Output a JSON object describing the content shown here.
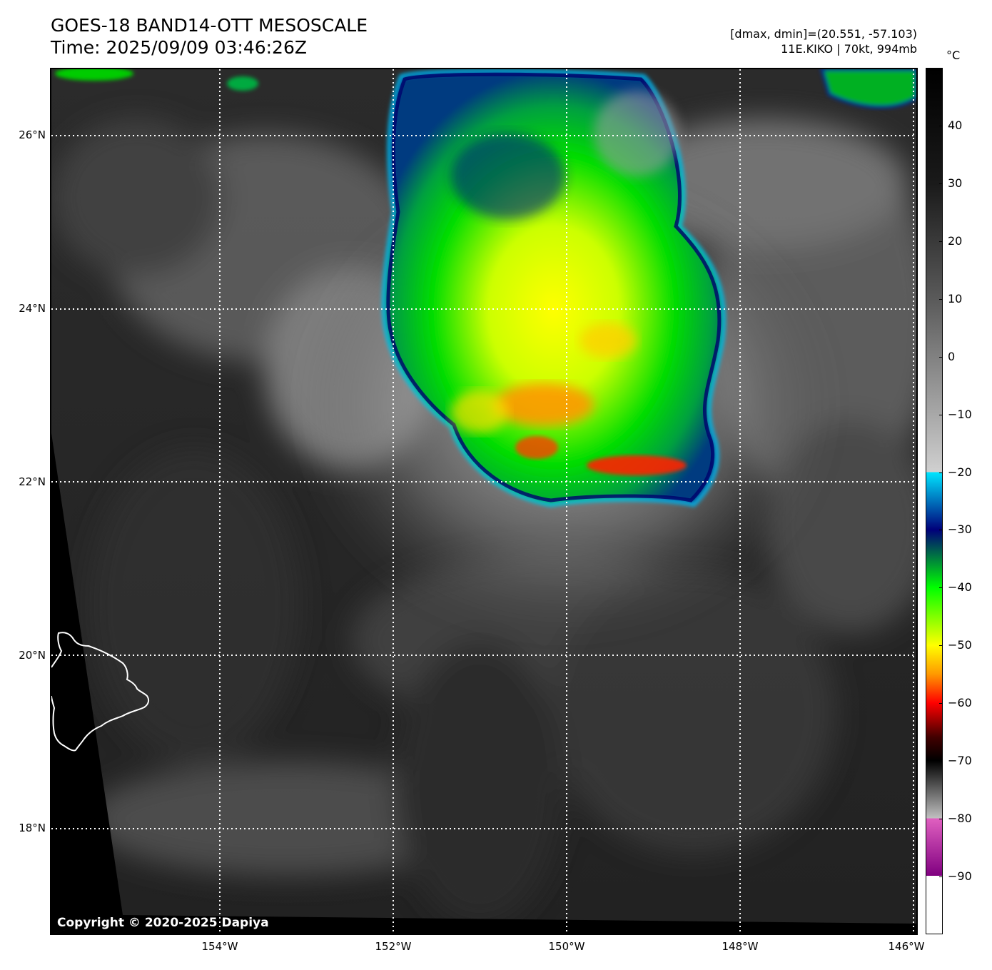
{
  "header": {
    "title": "GOES-18 BAND14-OTT MESOSCALE",
    "time": "Time: 2025/09/09 03:46:26Z",
    "dmax_dmin": "[dmax, dmin]=(20.551, -57.103)",
    "storm": "11E.KIKO | 70kt, 994mb"
  },
  "map": {
    "lat_labels": [
      "26°N",
      "24°N",
      "22°N",
      "20°N",
      "18°N"
    ],
    "lon_labels": [
      "154°W",
      "152°W",
      "150°W",
      "148°W",
      "146°W"
    ],
    "copyright": "Copyright © 2020-2025 Dapiya",
    "colors": {
      "background_cloud": "#2a2a2a",
      "gridline": "#ffffff",
      "coastline": "#ffffff"
    }
  },
  "colorbar": {
    "unit": "°C",
    "ticks": [
      "40",
      "30",
      "20",
      "10",
      "0",
      "−10",
      "−20",
      "−30",
      "−40",
      "−50",
      "−60",
      "−70",
      "−80",
      "−90"
    ],
    "stops": [
      {
        "temp": 50,
        "color": "#000000"
      },
      {
        "temp": 30,
        "color": "#1a1a1a"
      },
      {
        "temp": 10,
        "color": "#5a5a5a"
      },
      {
        "temp": -10,
        "color": "#a8a8a8"
      },
      {
        "temp": -20,
        "color": "#d0d0d0"
      },
      {
        "temp": -20,
        "color": "#00e5ff"
      },
      {
        "temp": -30,
        "color": "#00007a"
      },
      {
        "temp": -40,
        "color": "#00ff00"
      },
      {
        "temp": -50,
        "color": "#ffff00"
      },
      {
        "temp": -55,
        "color": "#ff9900"
      },
      {
        "temp": -60,
        "color": "#ff0000"
      },
      {
        "temp": -66,
        "color": "#400000"
      },
      {
        "temp": -70,
        "color": "#000000"
      },
      {
        "temp": -80,
        "color": "#c0c0c0"
      },
      {
        "temp": -80,
        "color": "#e060c0"
      },
      {
        "temp": -90,
        "color": "#800080"
      },
      {
        "temp": -90,
        "color": "#ffffff"
      },
      {
        "temp": -100,
        "color": "#ffffff"
      }
    ]
  }
}
